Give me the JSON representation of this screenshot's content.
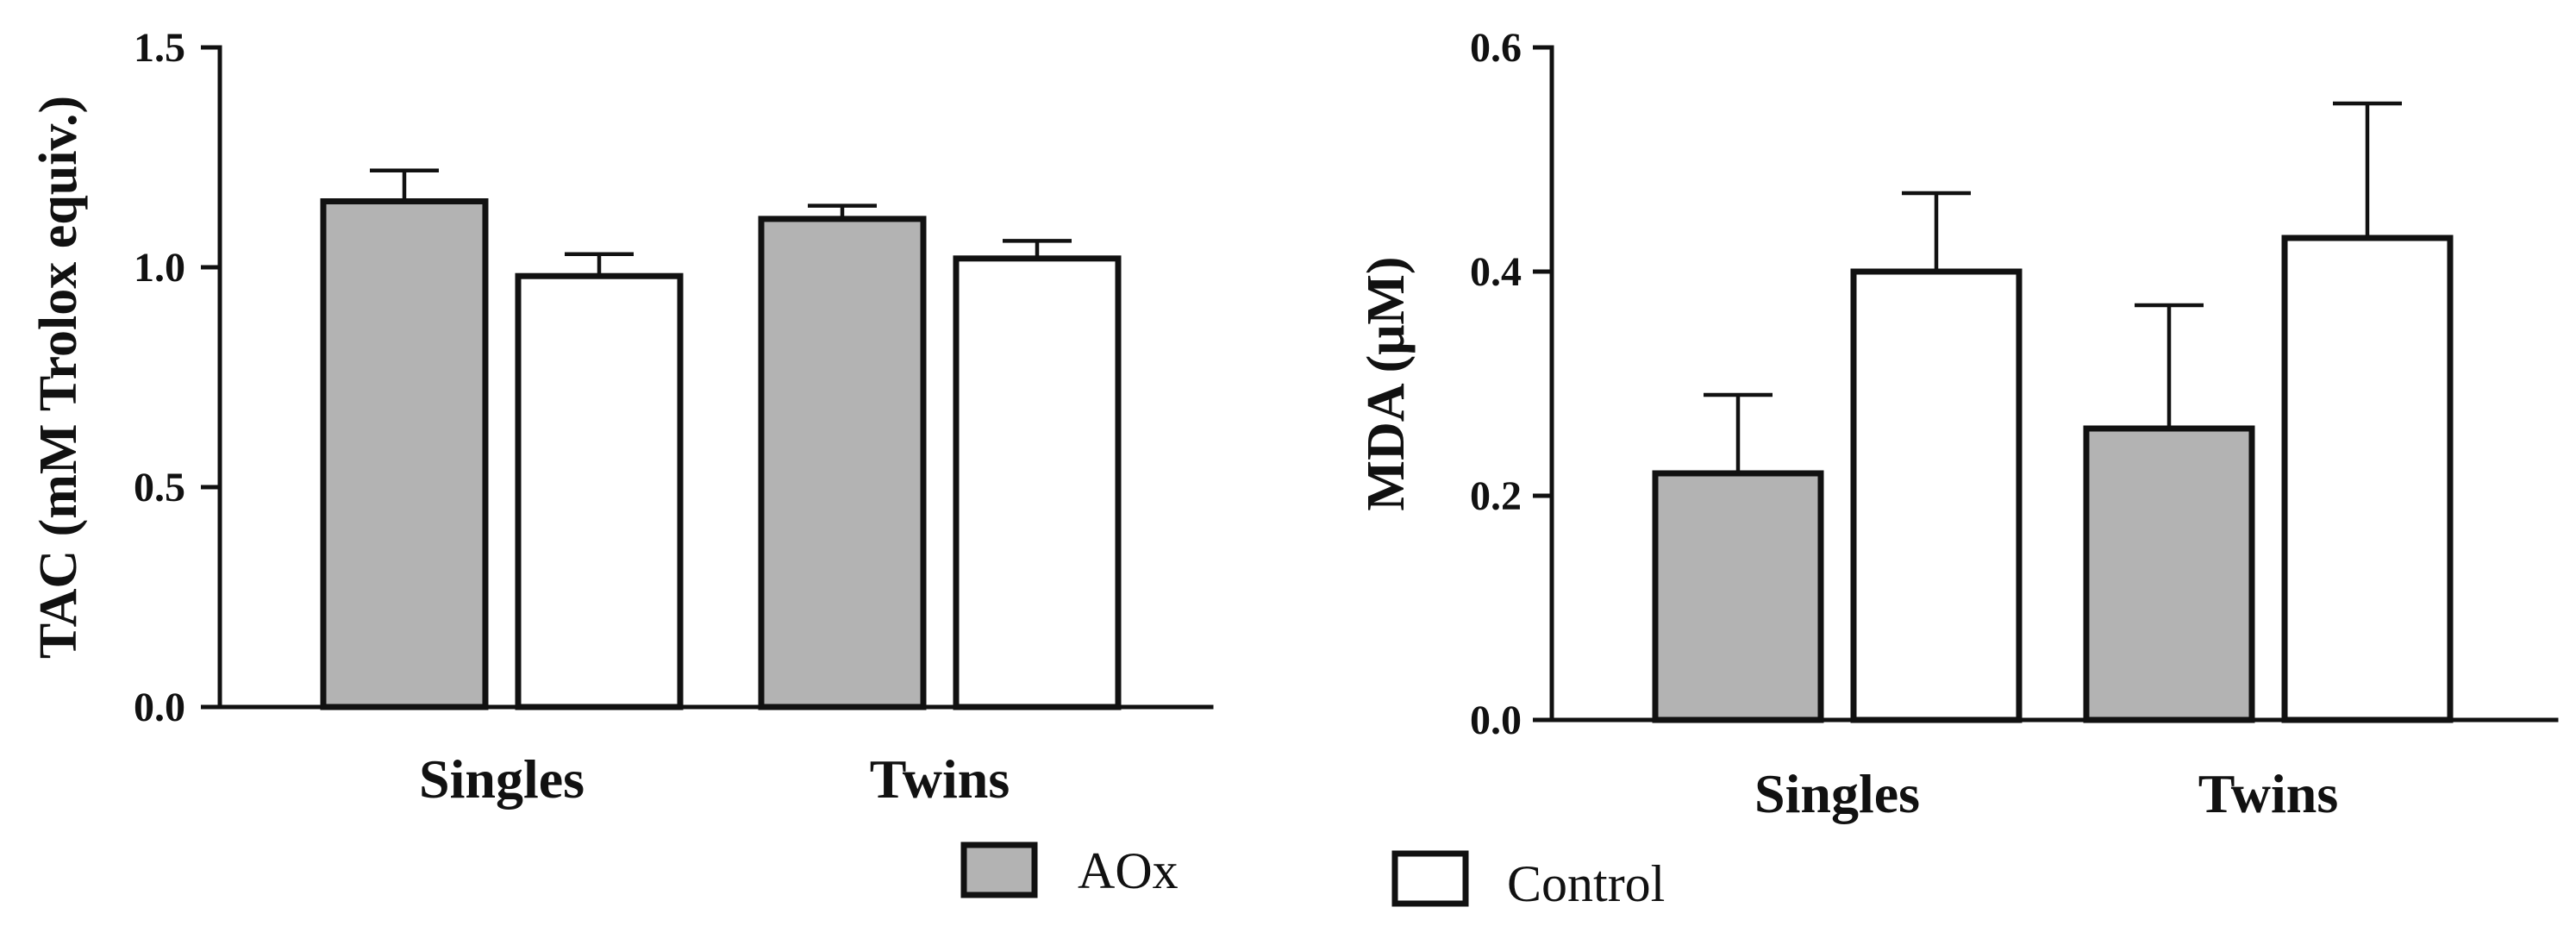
{
  "colors": {
    "aox": "#b3b3b3",
    "control": "#ffffff",
    "ink": "#111111"
  },
  "legend": [
    {
      "name": "AOx",
      "color": "#b3b3b3"
    },
    {
      "name": "Control",
      "color": "#ffffff"
    }
  ],
  "chart_data": [
    {
      "type": "bar",
      "title": "",
      "xlabel": "",
      "ylabel": "TAC (mM Trolox equiv.)",
      "ylim": [
        0,
        1.5
      ],
      "yticks": [
        0.0,
        0.5,
        1.0,
        1.5
      ],
      "ytick_labels": [
        "0.0",
        "0.5",
        "1.0",
        "1.5"
      ],
      "categories": [
        "Singles",
        "Twins"
      ],
      "series": [
        {
          "name": "AOx",
          "values": [
            1.15,
            1.11
          ],
          "errors": [
            0.07,
            0.03
          ]
        },
        {
          "name": "Control",
          "values": [
            0.98,
            1.02
          ],
          "errors": [
            0.05,
            0.04
          ]
        }
      ]
    },
    {
      "type": "bar",
      "title": "",
      "xlabel": "",
      "ylabel": "MDA (μM)",
      "ylim": [
        0,
        0.6
      ],
      "yticks": [
        0.0,
        0.2,
        0.4,
        0.6
      ],
      "ytick_labels": [
        "0.0",
        "0.2",
        "0.4",
        "0.6"
      ],
      "categories": [
        "Singles",
        "Twins"
      ],
      "series": [
        {
          "name": "AOx",
          "values": [
            0.22,
            0.26
          ],
          "errors": [
            0.07,
            0.11
          ]
        },
        {
          "name": "Control",
          "values": [
            0.4,
            0.43
          ],
          "errors": [
            0.07,
            0.12
          ]
        }
      ]
    }
  ]
}
